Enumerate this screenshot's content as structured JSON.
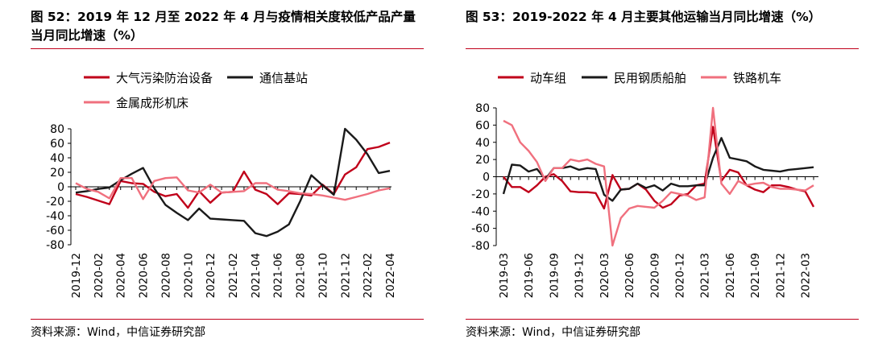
{
  "panels": [
    {
      "title": "图 52：2019 年 12 月至 2022 年 4 月与疫情相关度较低产品产量当月同比增速（%）",
      "source": "资料来源：Wind，中信证券研究部"
    },
    {
      "title": "图 53：2019-2022 年 4 月主要其他运输当月同比增速（%）",
      "source": "资料来源：Wind，中信证券研究部"
    }
  ],
  "chart_data": [
    {
      "type": "line",
      "title": "图 52：2019 年 12 月至 2022 年 4 月与疫情相关度较低产品产量当月同比增速（%）",
      "ylim": [
        -80,
        80
      ],
      "yticks": [
        80,
        60,
        40,
        20,
        0,
        -20,
        -40,
        -60,
        -80
      ],
      "ytick_labels": [
        "80",
        "60",
        "40",
        "20",
        "0",
        "-20",
        "-40",
        "-60",
        "-80"
      ],
      "x": [
        "2019-12",
        "2020-01",
        "2020-02",
        "2020-03",
        "2020-04",
        "2020-05",
        "2020-06",
        "2020-07",
        "2020-08",
        "2020-09",
        "2020-10",
        "2020-11",
        "2020-12",
        "2021-01",
        "2021-02",
        "2021-03",
        "2021-04",
        "2021-05",
        "2021-06",
        "2021-07",
        "2021-08",
        "2021-09",
        "2021-10",
        "2021-11",
        "2021-12",
        "2022-01",
        "2022-02",
        "2022-03",
        "2022-04"
      ],
      "xtick_labels": [
        "2019-12",
        "2020-02",
        "2020-04",
        "2020-06",
        "2020-08",
        "2020-10",
        "2020-12",
        "2021-02",
        "2021-04",
        "2021-06",
        "2021-08",
        "2021-10",
        "2021-12",
        "2022-02",
        "2022-04"
      ],
      "legend_placement": "top",
      "grid": false,
      "series": [
        {
          "name": "大气污染防治设备",
          "color": "#c0001a",
          "values": [
            -10,
            -14,
            -19,
            -24,
            8,
            5,
            4,
            -7,
            -13,
            -10,
            -29,
            -6,
            -22,
            -8,
            -7,
            21,
            -4,
            -10,
            -24,
            -9,
            -10,
            -12,
            3,
            -10,
            17,
            27,
            52,
            55,
            61
          ]
        },
        {
          "name": "通信基站",
          "color": "#1a1a1a",
          "values": [
            -8,
            -6,
            -3,
            -1,
            9,
            18,
            26,
            -2,
            -25,
            -36,
            -46,
            -30,
            -44,
            -45,
            -46,
            -47,
            -64,
            -68,
            -62,
            -52,
            -20,
            16,
            2,
            -11,
            80,
            65,
            45,
            19,
            22
          ]
        },
        {
          "name": "金属成形机床",
          "color": "#f0707e",
          "values": [
            5,
            -3,
            -7,
            -16,
            12,
            12,
            -17,
            8,
            12,
            13,
            -5,
            -8,
            3,
            -8,
            -7,
            -6,
            5,
            5,
            -4,
            -6,
            -9,
            -10,
            -12,
            -15,
            -18,
            -14,
            -10,
            -5,
            -2
          ]
        }
      ]
    },
    {
      "type": "line",
      "title": "图 53：2019-2022 年 4 月主要其他运输当月同比增速（%）",
      "ylim": [
        -80,
        80
      ],
      "yticks": [
        80,
        60,
        40,
        20,
        0,
        -20,
        -40,
        -60,
        -80
      ],
      "ytick_labels": [
        "80",
        "60",
        "40",
        "20",
        "0",
        "-20",
        "-40",
        "-60",
        "-80"
      ],
      "x_start": "2019-03",
      "n_points": 38,
      "xtick_labels": [
        "2019-03",
        "2019-06",
        "2019-09",
        "2019-12",
        "2020-03",
        "2020-06",
        "2020-09",
        "2020-12",
        "2021-03",
        "2021-06",
        "2021-09",
        "2021-12",
        "2022-03"
      ],
      "legend_placement": "top",
      "grid": false,
      "series": [
        {
          "name": "动车组",
          "color": "#c0001a",
          "values": [
            0,
            -12,
            -12,
            -18,
            -10,
            0,
            3,
            -5,
            -17,
            -18,
            -18,
            -19,
            -37,
            2,
            -15,
            -14,
            -8,
            -15,
            -28,
            -36,
            -32,
            -22,
            -20,
            -10,
            -8,
            58,
            -5,
            8,
            5,
            -10,
            -15,
            -18,
            -10,
            -10,
            -12,
            -15,
            -17,
            -35
          ]
        },
        {
          "name": "民用钢质船舶",
          "color": "#1a1a1a",
          "values": [
            -20,
            14,
            13,
            6,
            9,
            -3,
            10,
            10,
            12,
            8,
            10,
            9,
            -21,
            -28,
            -15,
            -14,
            -8,
            -13,
            -10,
            -16,
            -8,
            -11,
            -11,
            -10,
            -10,
            22,
            45,
            22,
            20,
            18,
            12,
            8,
            7,
            6,
            8,
            9,
            10,
            11
          ]
        },
        {
          "name": "铁路机车",
          "color": "#f0707e",
          "values": [
            65,
            60,
            40,
            30,
            17,
            -5,
            10,
            10,
            20,
            18,
            20,
            15,
            12,
            -80,
            -48,
            -37,
            -34,
            -35,
            -36,
            -28,
            -18,
            -20,
            -22,
            -27,
            -24,
            80,
            -8,
            -20,
            -5,
            -10,
            -8,
            -7,
            -12,
            -14,
            -14,
            -15,
            -16,
            -10
          ]
        }
      ]
    }
  ]
}
